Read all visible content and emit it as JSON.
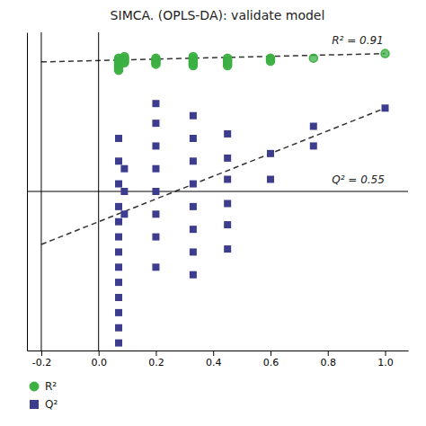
{
  "chart_data": {
    "type": "scatter",
    "title": "SIMCA. (OPLS-DA): validate model",
    "xlim": [
      -0.25,
      1.08
    ],
    "ylim": [
      -1.05,
      1.05
    ],
    "xticks": [
      -0.2,
      {
        "value": 0,
        "label": "0.0"
      },
      0.2,
      0.4,
      0.6,
      0.8,
      {
        "value": 1.0,
        "label": "1.0"
      }
    ],
    "tick_labels": "x",
    "grid": false,
    "legend": "bottom",
    "hlines": [
      0.0
    ],
    "vlines": [
      0.0,
      -0.2
    ],
    "annotations": [
      "R² = 0.91",
      "Q² = 0.55"
    ],
    "series": [
      {
        "name": "R²",
        "type": "scatter",
        "marker": "circle",
        "color": "#3CB043",
        "x": [
          0.07,
          0.07,
          0.07,
          0.07,
          0.07,
          0.07,
          0.07,
          0.07,
          0.07,
          0.09,
          0.09,
          0.09,
          0.09,
          0.09,
          0.2,
          0.2,
          0.2,
          0.2,
          0.2,
          0.33,
          0.33,
          0.33,
          0.33,
          0.33,
          0.33,
          0.33,
          0.45,
          0.45,
          0.45,
          0.45,
          0.45,
          0.45,
          0.6,
          0.6,
          0.6,
          0.75,
          1.0
        ],
        "values": [
          0.88,
          0.87,
          0.86,
          0.85,
          0.84,
          0.83,
          0.82,
          0.81,
          0.8,
          0.89,
          0.88,
          0.87,
          0.86,
          0.85,
          0.88,
          0.87,
          0.86,
          0.85,
          0.84,
          0.89,
          0.88,
          0.87,
          0.86,
          0.85,
          0.84,
          0.83,
          0.88,
          0.87,
          0.86,
          0.85,
          0.84,
          0.83,
          0.88,
          0.87,
          0.86,
          0.88,
          0.91
        ]
      },
      {
        "name": "Q²",
        "type": "scatter",
        "marker": "square",
        "color": "#3d3d8f",
        "x": [
          0.07,
          0.07,
          0.07,
          0.07,
          0.07,
          0.07,
          0.07,
          0.07,
          0.07,
          0.07,
          0.07,
          0.07,
          0.07,
          0.09,
          0.09,
          0.09,
          0.2,
          0.2,
          0.2,
          0.2,
          0.2,
          0.2,
          0.2,
          0.2,
          0.33,
          0.33,
          0.33,
          0.33,
          0.33,
          0.33,
          0.33,
          0.33,
          0.45,
          0.45,
          0.45,
          0.45,
          0.45,
          0.45,
          0.6,
          0.6,
          0.75,
          0.75,
          1.0
        ],
        "values": [
          0.35,
          0.2,
          0.05,
          -0.1,
          -0.2,
          -0.3,
          -0.4,
          -0.5,
          -0.6,
          -0.7,
          -0.8,
          -0.9,
          -1.0,
          0.15,
          0.0,
          -0.15,
          0.58,
          0.45,
          0.3,
          0.15,
          0.0,
          -0.15,
          -0.3,
          -0.5,
          0.5,
          0.35,
          0.2,
          0.05,
          -0.1,
          -0.25,
          -0.4,
          -0.55,
          0.38,
          0.22,
          0.08,
          -0.08,
          -0.22,
          -0.38,
          0.25,
          0.08,
          0.43,
          0.3,
          0.55
        ]
      },
      {
        "type": "line",
        "line_style": "dashed",
        "color": "#333333",
        "x": [
          -0.2,
          1.0
        ],
        "values": [
          0.855,
          0.91
        ]
      },
      {
        "type": "line",
        "line_style": "dashed",
        "color": "#333333",
        "x": [
          -0.2,
          1.0
        ],
        "values": [
          -0.35,
          0.55
        ]
      }
    ]
  }
}
